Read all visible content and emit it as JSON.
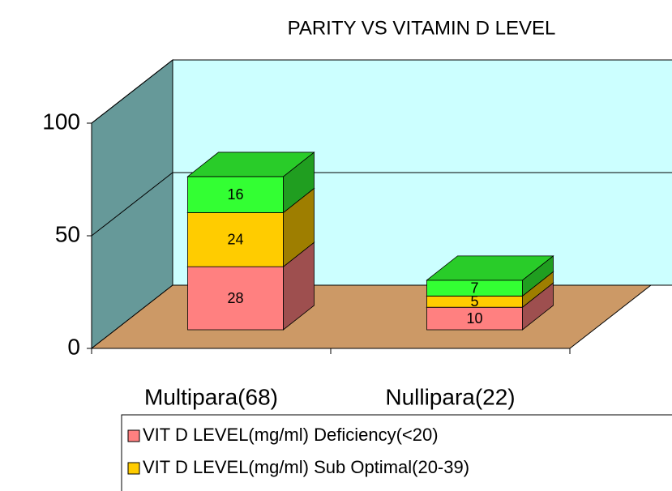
{
  "chart_data": {
    "type": "bar3d_stacked",
    "title": "PARITY VS VITAMIN D LEVEL",
    "categories": [
      "Multipara(68)",
      "Nullipara(22)"
    ],
    "series": [
      {
        "name": "VIT D LEVEL(mg/ml) Deficiency(<20)",
        "color": "#ff8080",
        "values": [
          28,
          10
        ]
      },
      {
        "name": "VIT D LEVEL(mg/ml) Sub Optimal(20-39)",
        "color": "#ffcc00",
        "values": [
          24,
          5
        ]
      },
      {
        "color": "#33ff33",
        "values": [
          16,
          7
        ]
      }
    ],
    "ylim": [
      0,
      100
    ],
    "yticks": [
      0,
      50,
      100
    ],
    "grid": true,
    "legend": "bottom"
  }
}
